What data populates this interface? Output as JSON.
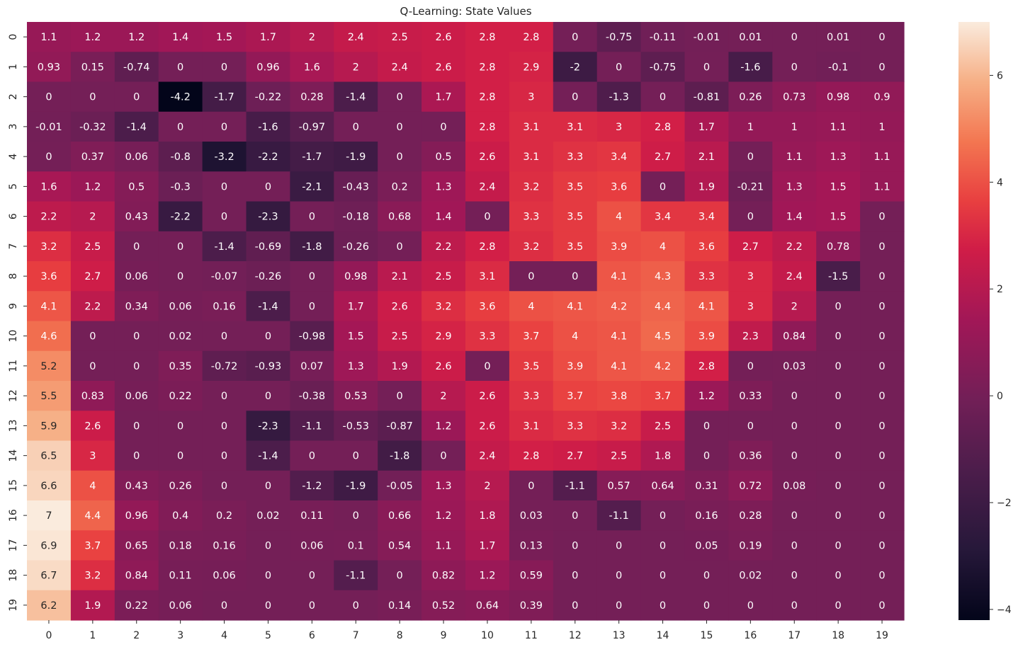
{
  "chart_data": {
    "type": "heatmap",
    "title": "Q-Learning: State Values",
    "xlabel": "",
    "ylabel": "",
    "x_ticks": [
      "0",
      "1",
      "2",
      "3",
      "4",
      "5",
      "6",
      "7",
      "8",
      "9",
      "10",
      "11",
      "12",
      "13",
      "14",
      "15",
      "16",
      "17",
      "18",
      "19"
    ],
    "y_ticks": [
      "0",
      "1",
      "2",
      "3",
      "4",
      "5",
      "6",
      "7",
      "8",
      "9",
      "10",
      "11",
      "12",
      "13",
      "14",
      "15",
      "16",
      "17",
      "18",
      "19"
    ],
    "colormap": "rocket",
    "vmin": -4.2,
    "vmax": 7.0,
    "colorbar_ticks": [
      "-4",
      "-2",
      "0",
      "2",
      "4",
      "6"
    ],
    "values": [
      [
        "1.1",
        "1.2",
        "1.2",
        "1.4",
        "1.5",
        "1.7",
        "2",
        "2.4",
        "2.5",
        "2.6",
        "2.8",
        "2.8",
        "0",
        "-0.75",
        "-0.11",
        "-0.01",
        "0.01",
        "0",
        "0.01",
        "0"
      ],
      [
        "0.93",
        "0.15",
        "-0.74",
        "0",
        "0",
        "0.96",
        "1.6",
        "2",
        "2.4",
        "2.6",
        "2.8",
        "2.9",
        "-2",
        "0",
        "-0.75",
        "0",
        "-1.6",
        "0",
        "-0.1",
        "0"
      ],
      [
        "0",
        "0",
        "0",
        "-4.2",
        "-1.7",
        "-0.22",
        "0.28",
        "-1.4",
        "0",
        "1.7",
        "2.8",
        "3",
        "0",
        "-1.3",
        "0",
        "-0.81",
        "0.26",
        "0.73",
        "0.98",
        "0.9"
      ],
      [
        "-0.01",
        "-0.32",
        "-1.4",
        "0",
        "0",
        "-1.6",
        "-0.97",
        "0",
        "0",
        "0",
        "2.8",
        "3.1",
        "3.1",
        "3",
        "2.8",
        "1.7",
        "1",
        "1",
        "1.1",
        "1"
      ],
      [
        "0",
        "0.37",
        "0.06",
        "-0.8",
        "-3.2",
        "-2.2",
        "-1.7",
        "-1.9",
        "0",
        "0.5",
        "2.6",
        "3.1",
        "3.3",
        "3.4",
        "2.7",
        "2.1",
        "0",
        "1.1",
        "1.3",
        "1.1"
      ],
      [
        "1.6",
        "1.2",
        "0.5",
        "-0.3",
        "0",
        "0",
        "-2.1",
        "-0.43",
        "0.2",
        "1.3",
        "2.4",
        "3.2",
        "3.5",
        "3.6",
        "0",
        "1.9",
        "-0.21",
        "1.3",
        "1.5",
        "1.1"
      ],
      [
        "2.2",
        "2",
        "0.43",
        "-2.2",
        "0",
        "-2.3",
        "0",
        "-0.18",
        "0.68",
        "1.4",
        "0",
        "3.3",
        "3.5",
        "4",
        "3.4",
        "3.4",
        "0",
        "1.4",
        "1.5",
        "0"
      ],
      [
        "3.2",
        "2.5",
        "0",
        "0",
        "-1.4",
        "-0.69",
        "-1.8",
        "-0.26",
        "0",
        "2.2",
        "2.8",
        "3.2",
        "3.5",
        "3.9",
        "4",
        "3.6",
        "2.7",
        "2.2",
        "0.78",
        "0"
      ],
      [
        "3.6",
        "2.7",
        "0.06",
        "0",
        "-0.07",
        "-0.26",
        "0",
        "0.98",
        "2.1",
        "2.5",
        "3.1",
        "0",
        "0",
        "4.1",
        "4.3",
        "3.3",
        "3",
        "2.4",
        "-1.5",
        "0"
      ],
      [
        "4.1",
        "2.2",
        "0.34",
        "0.06",
        "0.16",
        "-1.4",
        "0",
        "1.7",
        "2.6",
        "3.2",
        "3.6",
        "4",
        "4.1",
        "4.2",
        "4.4",
        "4.1",
        "3",
        "2",
        "0",
        "0"
      ],
      [
        "4.6",
        "0",
        "0",
        "0.02",
        "0",
        "0",
        "-0.98",
        "1.5",
        "2.5",
        "2.9",
        "3.3",
        "3.7",
        "4",
        "4.1",
        "4.5",
        "3.9",
        "2.3",
        "0.84",
        "0",
        "0"
      ],
      [
        "5.2",
        "0",
        "0",
        "0.35",
        "-0.72",
        "-0.93",
        "0.07",
        "1.3",
        "1.9",
        "2.6",
        "0",
        "3.5",
        "3.9",
        "4.1",
        "4.2",
        "2.8",
        "0",
        "0.03",
        "0",
        "0"
      ],
      [
        "5.5",
        "0.83",
        "0.06",
        "0.22",
        "0",
        "0",
        "-0.38",
        "0.53",
        "0",
        "2",
        "2.6",
        "3.3",
        "3.7",
        "3.8",
        "3.7",
        "1.2",
        "0.33",
        "0",
        "0",
        "0"
      ],
      [
        "5.9",
        "2.6",
        "0",
        "0",
        "0",
        "-2.3",
        "-1.1",
        "-0.53",
        "-0.87",
        "1.2",
        "2.6",
        "3.1",
        "3.3",
        "3.2",
        "2.5",
        "0",
        "0",
        "0",
        "0",
        "0"
      ],
      [
        "6.5",
        "3",
        "0",
        "0",
        "0",
        "-1.4",
        "0",
        "0",
        "-1.8",
        "0",
        "2.4",
        "2.8",
        "2.7",
        "2.5",
        "1.8",
        "0",
        "0.36",
        "0",
        "0",
        "0"
      ],
      [
        "6.6",
        "4",
        "0.43",
        "0.26",
        "0",
        "0",
        "-1.2",
        "-1.9",
        "-0.05",
        "1.3",
        "2",
        "0",
        "-1.1",
        "0.57",
        "0.64",
        "0.31",
        "0.72",
        "0.08",
        "0",
        "0"
      ],
      [
        "7",
        "4.4",
        "0.96",
        "0.4",
        "0.2",
        "0.02",
        "0.11",
        "0",
        "0.66",
        "1.2",
        "1.8",
        "0.03",
        "0",
        "-1.1",
        "0",
        "0.16",
        "0.28",
        "0",
        "0",
        "0"
      ],
      [
        "6.9",
        "3.7",
        "0.65",
        "0.18",
        "0.16",
        "0",
        "0.06",
        "0.1",
        "0.54",
        "1.1",
        "1.7",
        "0.13",
        "0",
        "0",
        "0",
        "0.05",
        "0.19",
        "0",
        "0",
        "0"
      ],
      [
        "6.7",
        "3.2",
        "0.84",
        "0.11",
        "0.06",
        "0",
        "0",
        "-1.1",
        "0",
        "0.82",
        "1.2",
        "0.59",
        "0",
        "0",
        "0",
        "0",
        "0.02",
        "0",
        "0",
        "0"
      ],
      [
        "6.2",
        "1.9",
        "0.22",
        "0.06",
        "0",
        "0",
        "0",
        "0",
        "0.14",
        "0.52",
        "0.64",
        "0.39",
        "0",
        "0",
        "0",
        "0",
        "0",
        "0",
        "0",
        "0"
      ]
    ]
  }
}
